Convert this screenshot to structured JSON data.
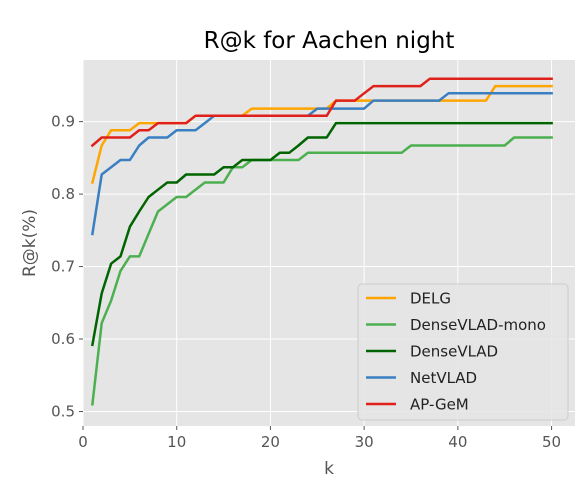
{
  "chart_data": {
    "type": "line",
    "title": "R@k for Aachen night",
    "xlabel": "k",
    "ylabel": "R@k(%)",
    "xlim": [
      0,
      52.5
    ],
    "ylim": [
      0.48,
      0.985
    ],
    "xticks": [
      0,
      10,
      20,
      30,
      40,
      50
    ],
    "yticks": [
      0.5,
      0.6,
      0.7,
      0.8,
      0.9
    ],
    "xtick_labels": [
      "0",
      "10",
      "20",
      "30",
      "40",
      "50"
    ],
    "ytick_labels": [
      "0.5",
      "0.6",
      "0.7",
      "0.8",
      "0.9"
    ],
    "grid": true,
    "legend_position": "lower-right",
    "style": "ggplot",
    "series": [
      {
        "name": "DELG",
        "color": "#ffa500",
        "points": [
          [
            1,
            0.816
          ],
          [
            2,
            0.867
          ],
          [
            3,
            0.888
          ],
          [
            5,
            0.888
          ],
          [
            6,
            0.898
          ],
          [
            11,
            0.898
          ],
          [
            12,
            0.908
          ],
          [
            17,
            0.908
          ],
          [
            18,
            0.918
          ],
          [
            26,
            0.918
          ],
          [
            27,
            0.929
          ],
          [
            43,
            0.929
          ],
          [
            44,
            0.949
          ],
          [
            50,
            0.949
          ]
        ]
      },
      {
        "name": "DenseVLAD-mono",
        "color": "#4caf50",
        "points": [
          [
            1,
            0.51
          ],
          [
            2,
            0.622
          ],
          [
            3,
            0.653
          ],
          [
            4,
            0.694
          ],
          [
            5,
            0.714
          ],
          [
            6,
            0.714
          ],
          [
            7,
            0.745
          ],
          [
            8,
            0.776
          ],
          [
            10,
            0.796
          ],
          [
            11,
            0.796
          ],
          [
            13,
            0.816
          ],
          [
            15,
            0.816
          ],
          [
            16,
            0.837
          ],
          [
            17,
            0.837
          ],
          [
            18,
            0.847
          ],
          [
            23,
            0.847
          ],
          [
            24,
            0.857
          ],
          [
            34,
            0.857
          ],
          [
            35,
            0.867
          ],
          [
            45,
            0.867
          ],
          [
            46,
            0.878
          ],
          [
            50,
            0.878
          ]
        ]
      },
      {
        "name": "DenseVLAD",
        "color": "#006400",
        "points": [
          [
            1,
            0.592
          ],
          [
            2,
            0.663
          ],
          [
            3,
            0.704
          ],
          [
            4,
            0.714
          ],
          [
            5,
            0.755
          ],
          [
            6,
            0.776
          ],
          [
            7,
            0.796
          ],
          [
            8,
            0.806
          ],
          [
            9,
            0.816
          ],
          [
            10,
            0.816
          ],
          [
            11,
            0.827
          ],
          [
            14,
            0.827
          ],
          [
            15,
            0.837
          ],
          [
            16,
            0.837
          ],
          [
            17,
            0.847
          ],
          [
            20,
            0.847
          ],
          [
            21,
            0.857
          ],
          [
            22,
            0.857
          ],
          [
            23,
            0.867
          ],
          [
            24,
            0.878
          ],
          [
            26,
            0.878
          ],
          [
            27,
            0.898
          ],
          [
            50,
            0.898
          ]
        ]
      },
      {
        "name": "NetVLAD",
        "color": "#3a7fc1",
        "points": [
          [
            1,
            0.745
          ],
          [
            2,
            0.827
          ],
          [
            3,
            0.837
          ],
          [
            4,
            0.847
          ],
          [
            5,
            0.847
          ],
          [
            6,
            0.867
          ],
          [
            7,
            0.878
          ],
          [
            9,
            0.878
          ],
          [
            10,
            0.888
          ],
          [
            12,
            0.888
          ],
          [
            13,
            0.898
          ],
          [
            14,
            0.908
          ],
          [
            24,
            0.908
          ],
          [
            25,
            0.918
          ],
          [
            30,
            0.918
          ],
          [
            31,
            0.929
          ],
          [
            38,
            0.929
          ],
          [
            39,
            0.939
          ],
          [
            50,
            0.939
          ]
        ]
      },
      {
        "name": "AP-GeM",
        "color": "#e0201b",
        "points": [
          [
            1,
            0.867
          ],
          [
            2,
            0.878
          ],
          [
            5,
            0.878
          ],
          [
            6,
            0.888
          ],
          [
            7,
            0.888
          ],
          [
            8,
            0.898
          ],
          [
            11,
            0.898
          ],
          [
            12,
            0.908
          ],
          [
            26,
            0.908
          ],
          [
            27,
            0.929
          ],
          [
            28,
            0.929
          ],
          [
            29,
            0.929
          ],
          [
            30,
            0.939
          ],
          [
            31,
            0.949
          ],
          [
            36,
            0.949
          ],
          [
            37,
            0.959
          ],
          [
            50,
            0.959
          ]
        ]
      }
    ]
  }
}
